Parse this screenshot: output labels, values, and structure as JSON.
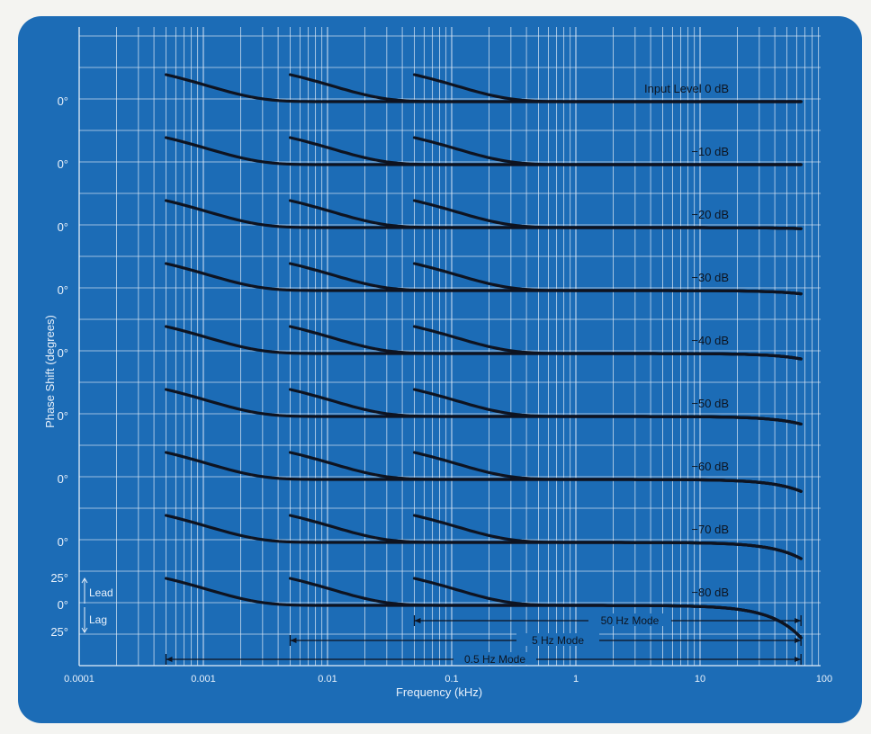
{
  "chart_data": {
    "type": "line",
    "x_axis": {
      "label": "Frequency (kHz)",
      "scale": "log",
      "range": [
        0.0001,
        100
      ],
      "ticks": [
        "0.0001",
        "0.001",
        "0.01",
        "0.1",
        "1",
        "10",
        "100"
      ]
    },
    "y_axis": {
      "label": "Phase Shift (degrees)",
      "tick_label": "0°",
      "scale_labels": [
        "25°",
        "0°",
        "25°"
      ],
      "lead_label": "Lead",
      "lag_label": "Lag"
    },
    "series": [
      {
        "name": "Input Level 0 dB",
        "tail_deg": 0
      },
      {
        "name": "−10 dB",
        "tail_deg": 0
      },
      {
        "name": "−20 dB",
        "tail_deg": -1
      },
      {
        "name": "−30 dB",
        "tail_deg": -3
      },
      {
        "name": "−40 dB",
        "tail_deg": -5
      },
      {
        "name": "−50 dB",
        "tail_deg": -7
      },
      {
        "name": "−60 dB",
        "tail_deg": -11
      },
      {
        "name": "−70 dB",
        "tail_deg": -15
      },
      {
        "name": "−80 dB",
        "tail_deg": -30
      }
    ],
    "modes": [
      {
        "label": "0.5 Hz Mode",
        "start_khz": 0.0005,
        "end_khz": 65
      },
      {
        "label": "5 Hz Mode",
        "start_khz": 0.005,
        "end_khz": 65
      },
      {
        "label": "50 Hz Mode",
        "start_khz": 0.05,
        "end_khz": 65
      }
    ],
    "lead_deg_at_mode_start": 25
  }
}
